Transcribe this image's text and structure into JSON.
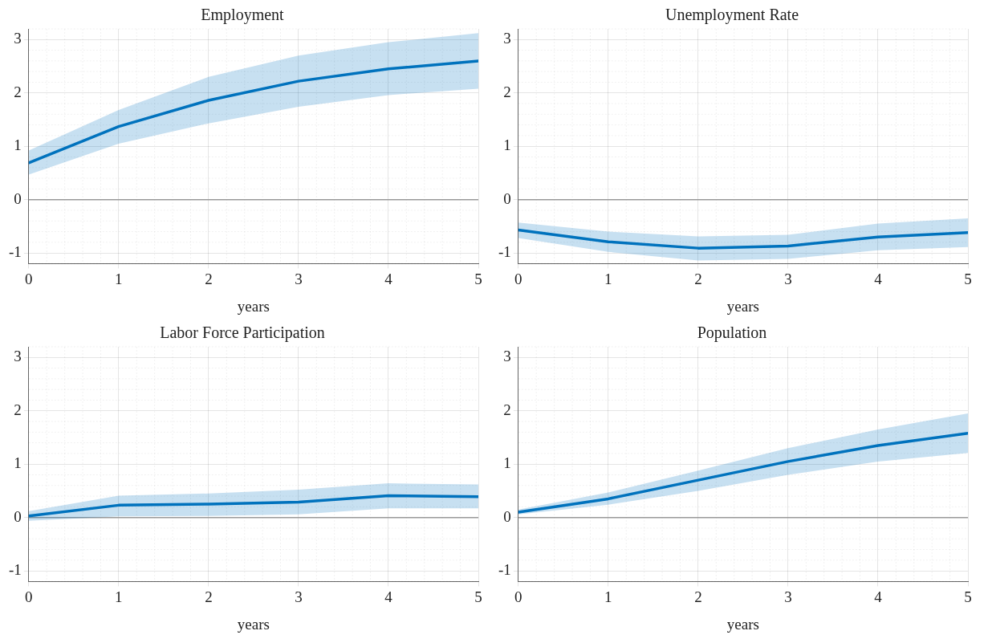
{
  "chart_data": [
    {
      "type": "line",
      "title": "Employment",
      "xlabel": "years",
      "x": [
        0,
        1,
        2,
        3,
        4,
        5
      ],
      "xlim": [
        0,
        5
      ],
      "xticks": [
        0,
        1,
        2,
        3,
        4,
        5
      ],
      "ylim": [
        -1.2,
        3.2
      ],
      "yticks": [
        -1,
        0,
        1,
        2,
        3
      ],
      "grid": true,
      "ref_lines": [
        {
          "axis": "y",
          "value": 0,
          "color": "#999999"
        }
      ],
      "series": [
        {
          "color": "#0072bd",
          "values": [
            0.69,
            1.37,
            1.86,
            2.22,
            2.45,
            2.6
          ],
          "lower": [
            0.47,
            1.05,
            1.43,
            1.74,
            1.96,
            2.08
          ],
          "upper": [
            0.92,
            1.68,
            2.3,
            2.7,
            2.95,
            3.12
          ]
        }
      ]
    },
    {
      "type": "line",
      "title": "Unemployment Rate",
      "xlabel": "years",
      "x": [
        0,
        1,
        2,
        3,
        4,
        5
      ],
      "xlim": [
        0,
        5
      ],
      "xticks": [
        0,
        1,
        2,
        3,
        4,
        5
      ],
      "ylim": [
        -1.2,
        3.2
      ],
      "yticks": [
        -1,
        0,
        1,
        2,
        3
      ],
      "grid": true,
      "ref_lines": [
        {
          "axis": "y",
          "value": 0,
          "color": "#999999"
        }
      ],
      "series": [
        {
          "color": "#0072bd",
          "values": [
            -0.57,
            -0.79,
            -0.91,
            -0.87,
            -0.7,
            -0.62
          ],
          "lower": [
            -0.72,
            -0.98,
            -1.14,
            -1.11,
            -0.95,
            -0.89
          ],
          "upper": [
            -0.43,
            -0.6,
            -0.69,
            -0.66,
            -0.45,
            -0.35
          ]
        }
      ]
    },
    {
      "type": "line",
      "title": "Labor Force Participation",
      "xlabel": "years",
      "x": [
        0,
        1,
        2,
        3,
        4,
        5
      ],
      "xlim": [
        0,
        5
      ],
      "xticks": [
        0,
        1,
        2,
        3,
        4,
        5
      ],
      "ylim": [
        -1.2,
        3.2
      ],
      "yticks": [
        -1,
        0,
        1,
        2,
        3
      ],
      "grid": true,
      "ref_lines": [
        {
          "axis": "y",
          "value": 0,
          "color": "#999999"
        }
      ],
      "series": [
        {
          "color": "#0072bd",
          "values": [
            0.03,
            0.23,
            0.25,
            0.29,
            0.41,
            0.39
          ],
          "lower": [
            -0.06,
            0.02,
            0.03,
            0.06,
            0.17,
            0.17
          ],
          "upper": [
            0.12,
            0.41,
            0.45,
            0.52,
            0.64,
            0.62
          ]
        }
      ]
    },
    {
      "type": "line",
      "title": "Population",
      "xlabel": "years",
      "x": [
        0,
        1,
        2,
        3,
        4,
        5
      ],
      "xlim": [
        0,
        5
      ],
      "xticks": [
        0,
        1,
        2,
        3,
        4,
        5
      ],
      "ylim": [
        -1.2,
        3.2
      ],
      "yticks": [
        -1,
        0,
        1,
        2,
        3
      ],
      "grid": true,
      "ref_lines": [
        {
          "axis": "y",
          "value": 0,
          "color": "#999999"
        }
      ],
      "series": [
        {
          "color": "#0072bd",
          "values": [
            0.1,
            0.35,
            0.7,
            1.05,
            1.35,
            1.58
          ],
          "lower": [
            0.06,
            0.24,
            0.5,
            0.8,
            1.05,
            1.21
          ],
          "upper": [
            0.15,
            0.47,
            0.88,
            1.3,
            1.65,
            1.95
          ]
        }
      ]
    }
  ]
}
